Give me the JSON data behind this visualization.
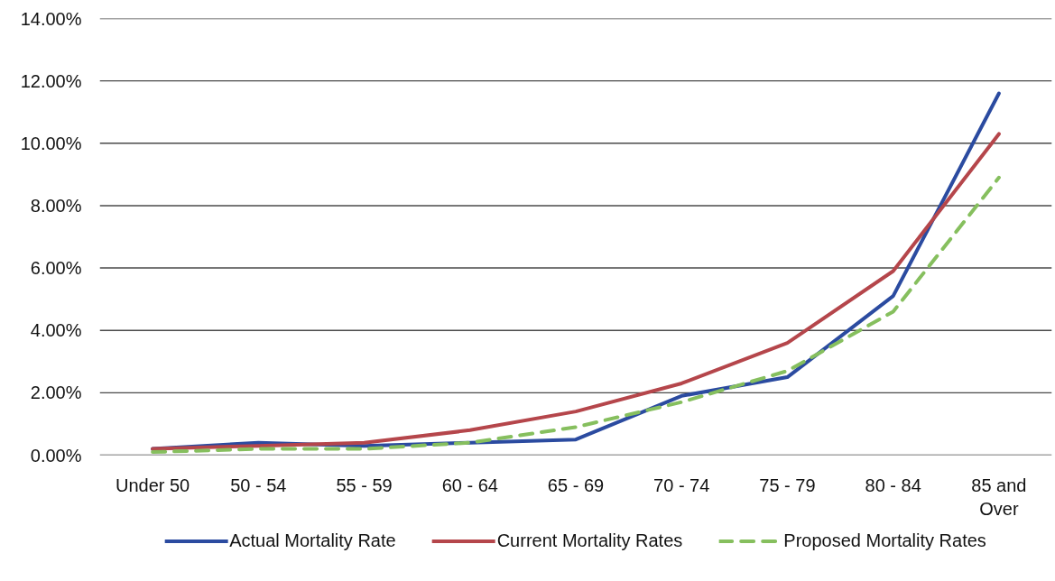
{
  "chart_data": {
    "type": "line",
    "categories": [
      "Under 50",
      "50 - 54",
      "55 - 59",
      "60 - 64",
      "65 - 69",
      "70 - 74",
      "75 - 79",
      "80 - 84",
      "85 and Over"
    ],
    "series": [
      {
        "name": "Actual Mortality Rate",
        "color": "#2b4ba0",
        "line_style": "solid",
        "values": [
          0.2,
          0.4,
          0.3,
          0.4,
          0.5,
          1.9,
          2.5,
          5.1,
          11.6
        ]
      },
      {
        "name": "Current Mortality Rates",
        "color": "#b5464b",
        "line_style": "solid",
        "values": [
          0.2,
          0.3,
          0.4,
          0.8,
          1.4,
          2.3,
          3.6,
          5.9,
          10.3
        ]
      },
      {
        "name": "Proposed Mortality Rates",
        "color": "#86bf5e",
        "line_style": "dashed",
        "values": [
          0.1,
          0.2,
          0.2,
          0.4,
          0.9,
          1.7,
          2.7,
          4.6,
          8.9
        ]
      }
    ],
    "ylim": [
      0,
      14
    ],
    "yticks": [
      {
        "value": 0,
        "label": "0.00%"
      },
      {
        "value": 2,
        "label": "2.00%"
      },
      {
        "value": 4,
        "label": "4.00%"
      },
      {
        "value": 6,
        "label": "6.00%"
      },
      {
        "value": 8,
        "label": "8.00%"
      },
      {
        "value": 10,
        "label": "10.00%"
      },
      {
        "value": 12,
        "label": "12.00%"
      },
      {
        "value": 14,
        "label": "14.00%"
      }
    ],
    "grid": "y",
    "legend": "bottom"
  }
}
